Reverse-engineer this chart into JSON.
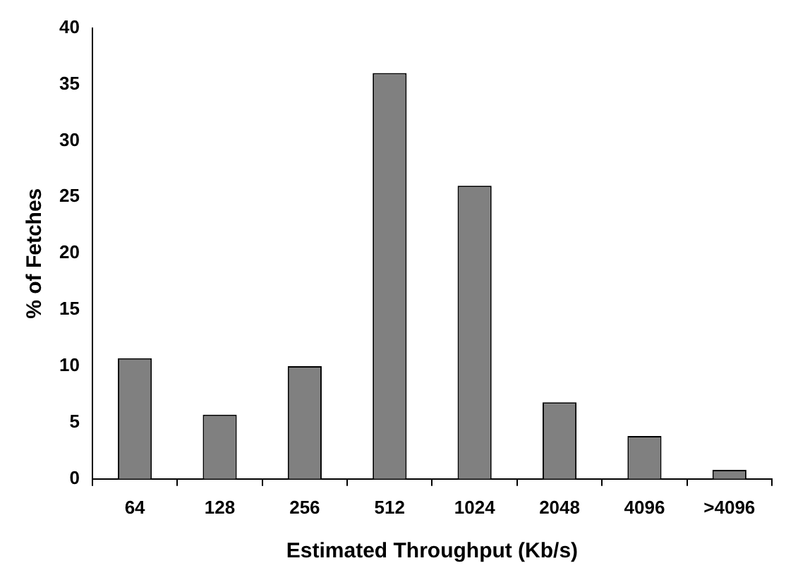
{
  "chart_data": {
    "type": "bar",
    "xlabel": "Estimated Throughput (Kb/s)",
    "ylabel": "% of Fetches",
    "categories": [
      "64",
      "128",
      "256",
      "512",
      "1024",
      "2048",
      "4096",
      ">4096"
    ],
    "values": [
      10.7,
      5.7,
      10.0,
      36.0,
      26.0,
      6.8,
      3.8,
      0.8
    ],
    "color": "#808080",
    "ylim": [
      0,
      40
    ],
    "yticks": [
      0,
      5,
      10,
      15,
      20,
      25,
      30,
      35,
      40
    ],
    "grid": false
  }
}
